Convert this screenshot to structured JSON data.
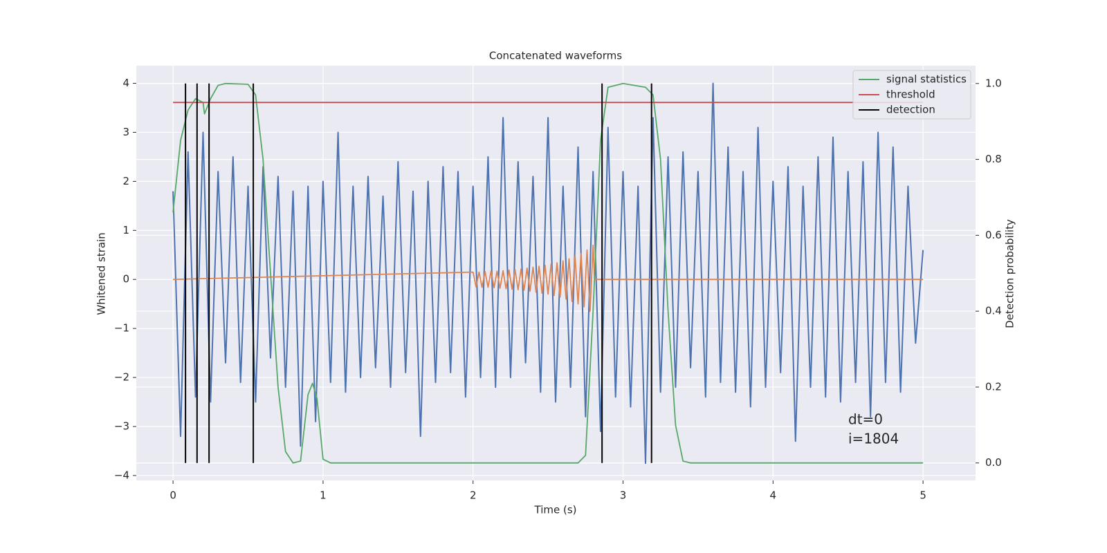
{
  "chart_data": {
    "type": "line",
    "title": "Concatenated waveforms",
    "xlabel": "Time (s)",
    "ylabel": "Whitened strain",
    "y2label": "Detection probability",
    "xlim": [
      -0.245,
      5.35
    ],
    "xticks": [
      0,
      1,
      2,
      3,
      4,
      5
    ],
    "ylim": [
      -4.1,
      4.36
    ],
    "yticks": [
      {
        "value": -4,
        "label": "−4"
      },
      {
        "value": -3,
        "label": "−3"
      },
      {
        "value": -2,
        "label": "−2"
      },
      {
        "value": -1,
        "label": "−1"
      },
      0,
      1,
      2,
      3,
      4
    ],
    "y2lim": [
      -0.046,
      1.047
    ],
    "y2ticks": [
      {
        "value": 0,
        "label": "0.0"
      },
      0.2,
      0.4,
      0.6,
      0.8,
      {
        "value": 1,
        "label": "1.0"
      }
    ],
    "grid": true,
    "legend": "upper right",
    "series": [
      {
        "color": "#4c72b0",
        "axis": "y",
        "x": [
          0,
          0.05,
          0.1,
          0.15,
          0.2,
          0.25,
          0.3,
          0.35,
          0.4,
          0.45,
          0.5,
          0.55,
          0.6,
          0.65,
          0.7,
          0.75,
          0.8,
          0.85,
          0.9,
          0.95,
          1,
          1.05,
          1.1,
          1.15,
          1.2,
          1.25,
          1.3,
          1.35,
          1.4,
          1.45,
          1.5,
          1.55,
          1.6,
          1.65,
          1.7,
          1.75,
          1.8,
          1.85,
          1.9,
          1.95,
          2,
          2.05,
          2.1,
          2.15,
          2.2,
          2.25,
          2.3,
          2.35,
          2.4,
          2.45,
          2.5,
          2.55,
          2.6,
          2.65,
          2.7,
          2.75,
          2.8,
          2.85,
          2.9,
          2.95,
          3,
          3.05,
          3.1,
          3.15,
          3.2,
          3.25,
          3.3,
          3.35,
          3.4,
          3.45,
          3.5,
          3.55,
          3.6,
          3.65,
          3.7,
          3.75,
          3.8,
          3.85,
          3.9,
          3.95,
          4,
          4.05,
          4.1,
          4.15,
          4.2,
          4.25,
          4.3,
          4.35,
          4.4,
          4.45,
          4.5,
          4.55,
          4.6,
          4.65,
          4.7,
          4.75,
          4.8,
          4.85,
          4.9,
          4.95,
          5
        ],
        "values": [
          1.8,
          -3.2,
          2.6,
          -2.4,
          3.0,
          -2.5,
          2.2,
          -1.7,
          2.5,
          -2.1,
          1.9,
          -2.5,
          2.3,
          -1.6,
          2.1,
          -2.2,
          1.8,
          -3.4,
          1.9,
          -2.9,
          2.0,
          -2.1,
          3.0,
          -2.3,
          1.9,
          -2.0,
          2.1,
          -1.8,
          1.7,
          -2.2,
          2.4,
          -1.9,
          1.8,
          -3.2,
          2.0,
          -2.1,
          2.3,
          -1.9,
          2.2,
          -2.4,
          1.9,
          -2.0,
          2.5,
          -2.2,
          3.3,
          -2.0,
          2.4,
          -1.7,
          2.1,
          -2.3,
          3.3,
          -2.5,
          1.9,
          -2.2,
          2.7,
          -2.8,
          2.2,
          -3.1,
          3.1,
          -2.4,
          2.2,
          -2.6,
          1.9,
          -3.75,
          3.3,
          -2.3,
          2.5,
          -2.2,
          2.6,
          -1.8,
          2.2,
          -2.4,
          4.0,
          -2.1,
          2.7,
          -2.3,
          2.2,
          -2.6,
          3.1,
          -2.2,
          2.0,
          -1.9,
          2.3,
          -3.3,
          1.9,
          -2.2,
          2.5,
          -2.4,
          2.9,
          -2.5,
          2.2,
          -2.1,
          2.4,
          -2.8,
          3.0,
          -2.1,
          2.7,
          -2.3,
          1.9,
          -1.3,
          0.6
        ]
      },
      {
        "color": "#dd8452",
        "axis": "y",
        "x": [
          0,
          2,
          2.02,
          2.04,
          2.06,
          2.08,
          2.1,
          2.12,
          2.14,
          2.16,
          2.18,
          2.2,
          2.22,
          2.24,
          2.26,
          2.28,
          2.3,
          2.32,
          2.34,
          2.36,
          2.38,
          2.4,
          2.42,
          2.44,
          2.46,
          2.48,
          2.5,
          2.52,
          2.54,
          2.56,
          2.58,
          2.6,
          2.62,
          2.64,
          2.66,
          2.68,
          2.7,
          2.72,
          2.74,
          2.76,
          2.78,
          2.8,
          2.81,
          5
        ],
        "values": [
          0,
          0.15,
          -0.15,
          0.15,
          -0.16,
          0.16,
          -0.16,
          0.17,
          -0.17,
          0.17,
          -0.18,
          0.18,
          -0.19,
          0.19,
          -0.2,
          0.2,
          -0.21,
          0.21,
          -0.22,
          0.23,
          -0.24,
          0.25,
          -0.26,
          0.27,
          -0.28,
          0.29,
          -0.3,
          0.31,
          -0.33,
          0.34,
          -0.36,
          0.38,
          -0.4,
          0.42,
          -0.45,
          0.48,
          -0.5,
          0.53,
          -0.56,
          0.6,
          -0.65,
          0.7,
          0,
          0
        ]
      },
      {
        "name": "signal statistics",
        "color": "#55a868",
        "axis": "y2",
        "x": [
          0,
          0.05,
          0.1,
          0.15,
          0.2,
          0.21,
          0.25,
          0.3,
          0.35,
          0.5,
          0.55,
          0.6,
          0.65,
          0.7,
          0.75,
          0.8,
          0.85,
          0.9,
          0.93,
          0.96,
          1,
          1.05,
          2.7,
          2.75,
          2.8,
          2.85,
          2.9,
          3,
          3.15,
          3.2,
          3.25,
          3.3,
          3.35,
          3.4,
          3.45,
          5
        ],
        "values": [
          0.66,
          0.85,
          0.93,
          0.96,
          0.95,
          0.92,
          0.96,
          0.995,
          1.0,
          0.998,
          0.97,
          0.8,
          0.5,
          0.2,
          0.03,
          0.0,
          0.005,
          0.18,
          0.21,
          0.17,
          0.01,
          0.0,
          0.0,
          0.02,
          0.4,
          0.85,
          0.99,
          1.0,
          0.99,
          0.97,
          0.8,
          0.4,
          0.1,
          0.005,
          0.0,
          0.0
        ]
      },
      {
        "name": "threshold",
        "color": "#c44e52",
        "axis": "y2",
        "x": [
          0,
          5
        ],
        "values": [
          0.95,
          0.95
        ]
      },
      {
        "name": "detection",
        "color": "#000000",
        "axis": "y2",
        "kind": "vline",
        "x": [
          0.083,
          0.16,
          0.24,
          0.535,
          2.86,
          3.19
        ],
        "span": [
          0,
          1
        ]
      }
    ],
    "annotations": [
      "dt=0",
      "i=1804"
    ]
  }
}
